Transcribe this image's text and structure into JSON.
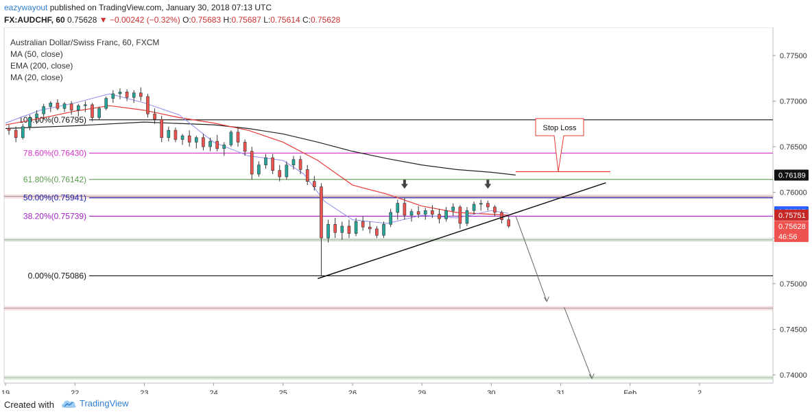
{
  "header": {
    "username": "eazywayout",
    "published_text": "published on TradingView.com, January 30, 2018 07:13 UTC",
    "symbol": "FX:AUDCHF, 60",
    "last": "0.75628",
    "change": "▼ −0.00242 (−0.32%)",
    "o_label": "O:",
    "o_value": "0.75683",
    "h_label": "H:",
    "h_value": "0.75687",
    "l_label": "L:",
    "l_value": "0.75614",
    "c_label": "C:",
    "c_value": "0.75628"
  },
  "legend": {
    "title": "Australian Dollar/Swiss Franc, 60, FXCM",
    "items": [
      "MA (50, close)",
      "EMA (200, close)",
      "MA (20, close)"
    ]
  },
  "footer": {
    "created_with": "Created with",
    "brand": "TradingView"
  },
  "chart_data": {
    "type": "candlestick",
    "ylim": [
      0.7397,
      0.7777
    ],
    "y_ticks": [
      0.775,
      0.77,
      0.765,
      0.76,
      0.755,
      0.75,
      0.745,
      0.74
    ],
    "y_tick_labels": [
      "0.77500",
      "0.77000",
      "0.76500",
      "0.76000",
      "0.75500",
      "0.75000",
      "0.74500",
      "0.74000"
    ],
    "x_ticks": [
      {
        "label": "19",
        "t": 0
      },
      {
        "label": "22",
        "t": 1
      },
      {
        "label": "23",
        "t": 2
      },
      {
        "label": "24",
        "t": 3
      },
      {
        "label": "25",
        "t": 4
      },
      {
        "label": "26",
        "t": 5
      },
      {
        "label": "29",
        "t": 6
      },
      {
        "label": "30",
        "t": 7
      },
      {
        "label": "31",
        "t": 8
      },
      {
        "label": "Feb",
        "t": 9
      },
      {
        "label": "2",
        "t": 10
      }
    ],
    "colors": {
      "up": "#26a69a",
      "down": "#ef5350",
      "ma50": "#e53935",
      "ema200": "#222222",
      "ma20": "#8c8cf0",
      "fib_pink": "#d633c9",
      "fib_green": "#5a9a4e"
    },
    "fib_levels": [
      {
        "label": "100.00%(0.76795)",
        "value": 0.76795,
        "color": "#111111"
      },
      {
        "label": "78.60%(0.76430)",
        "value": 0.7643,
        "color": "#d633c9"
      },
      {
        "label": "61.80%(0.76142)",
        "value": 0.76142,
        "color": "#5a9a4e"
      },
      {
        "label": "50.00%(0.75941)",
        "value": 0.75941,
        "color": "#1a1aa8"
      },
      {
        "label": "38.20%(0.75739)",
        "value": 0.75739,
        "color": "#a020c0"
      },
      {
        "label": "0.00%(0.75086)",
        "value": 0.75086,
        "color": "#111111"
      }
    ],
    "price_labels": [
      {
        "text": "0.76189",
        "value": 0.76189,
        "bg": "#111111",
        "fg": "#ffffff"
      },
      {
        "text": "0.75787",
        "value": 0.75787,
        "bg": "#2962ff",
        "fg": "#ffffff"
      },
      {
        "text": "0.75751",
        "value": 0.75751,
        "bg": "#c62828",
        "fg": "#ffffff"
      },
      {
        "text": "0.75628",
        "value": 0.75628,
        "bg": "#ef5350",
        "fg": "#ffffff"
      },
      {
        "text": "46:56",
        "value": 0.75516,
        "bg": "#ef5350",
        "fg": "#ffffff"
      }
    ],
    "annotation": {
      "text": "Stop Loss",
      "stop_value": 0.76227
    },
    "trendline": {
      "from": {
        "t": 4.5,
        "v": 0.75055
      },
      "to": {
        "t": 8.65,
        "v": 0.76105
      }
    },
    "projection": [
      {
        "t": 7.35,
        "v": 0.75745
      },
      {
        "t": 7.8,
        "v": 0.74805
      },
      {
        "t": 8.05,
        "v": 0.7474
      },
      {
        "t": 8.45,
        "v": 0.7396
      }
    ],
    "horizontal_zones": [
      {
        "value": 0.75955,
        "color": "#e8b4b8"
      },
      {
        "value": 0.7548,
        "color": "#b9d9b9"
      },
      {
        "value": 0.7473,
        "color": "#e8b4b8"
      },
      {
        "value": 0.7397,
        "color": "#b9d9b9"
      }
    ],
    "ma50": [
      [
        0.0,
        0.7674
      ],
      [
        0.5,
        0.7681
      ],
      [
        1.0,
        0.7689
      ],
      [
        1.5,
        0.7695
      ],
      [
        2.0,
        0.769
      ],
      [
        2.5,
        0.7682
      ],
      [
        3.0,
        0.7676
      ],
      [
        3.5,
        0.7668
      ],
      [
        4.0,
        0.7655
      ],
      [
        4.5,
        0.7635
      ],
      [
        5.0,
        0.7608
      ],
      [
        5.5,
        0.7598
      ],
      [
        6.0,
        0.7585
      ],
      [
        6.5,
        0.7578
      ],
      [
        7.0,
        0.7576
      ],
      [
        7.25,
        0.7575
      ]
    ],
    "ema200": [
      [
        0.0,
        0.767
      ],
      [
        1.0,
        0.7673
      ],
      [
        2.0,
        0.7677
      ],
      [
        3.0,
        0.7674
      ],
      [
        3.5,
        0.767
      ],
      [
        4.0,
        0.7664
      ],
      [
        4.5,
        0.7655
      ],
      [
        5.0,
        0.7645
      ],
      [
        5.5,
        0.7637
      ],
      [
        6.0,
        0.763
      ],
      [
        6.5,
        0.7625
      ],
      [
        7.0,
        0.7622
      ],
      [
        7.35,
        0.7619
      ]
    ],
    "ma20": [
      [
        0.0,
        0.7676
      ],
      [
        0.5,
        0.769
      ],
      [
        1.0,
        0.7698
      ],
      [
        1.5,
        0.7708
      ],
      [
        2.0,
        0.7698
      ],
      [
        2.5,
        0.7685
      ],
      [
        3.0,
        0.7655
      ],
      [
        3.5,
        0.764
      ],
      [
        4.0,
        0.7635
      ],
      [
        4.3,
        0.762
      ],
      [
        4.6,
        0.759
      ],
      [
        5.0,
        0.757
      ],
      [
        5.5,
        0.7566
      ],
      [
        6.0,
        0.7575
      ],
      [
        6.5,
        0.7572
      ],
      [
        7.0,
        0.758
      ],
      [
        7.25,
        0.7577
      ]
    ],
    "candles": [
      [
        0.05,
        0.767,
        0.7674,
        0.7663,
        0.7668
      ],
      [
        0.15,
        0.7668,
        0.7672,
        0.7655,
        0.766
      ],
      [
        0.25,
        0.766,
        0.7675,
        0.7658,
        0.7672
      ],
      [
        0.35,
        0.7672,
        0.7685,
        0.7668,
        0.7682
      ],
      [
        0.45,
        0.7682,
        0.769,
        0.7675,
        0.7686
      ],
      [
        0.55,
        0.7686,
        0.7697,
        0.768,
        0.7694
      ],
      [
        0.65,
        0.7694,
        0.77,
        0.7688,
        0.7698
      ],
      [
        0.75,
        0.7698,
        0.7702,
        0.769,
        0.7692
      ],
      [
        0.85,
        0.7692,
        0.7699,
        0.7688,
        0.7697
      ],
      [
        0.95,
        0.7697,
        0.77,
        0.7685,
        0.769
      ],
      [
        1.05,
        0.769,
        0.7697,
        0.7683,
        0.7695
      ],
      [
        1.15,
        0.7695,
        0.77,
        0.7688,
        0.7696
      ],
      [
        1.25,
        0.7696,
        0.7698,
        0.7678,
        0.7682
      ],
      [
        1.35,
        0.7682,
        0.7694,
        0.768,
        0.7692
      ],
      [
        1.45,
        0.7692,
        0.7705,
        0.769,
        0.7703
      ],
      [
        1.55,
        0.7703,
        0.7712,
        0.7698,
        0.7708
      ],
      [
        1.65,
        0.7708,
        0.7714,
        0.7702,
        0.771
      ],
      [
        1.75,
        0.771,
        0.7713,
        0.77,
        0.7704
      ],
      [
        1.85,
        0.7704,
        0.7712,
        0.7698,
        0.7709
      ],
      [
        1.95,
        0.7709,
        0.7715,
        0.77,
        0.7705
      ],
      [
        2.05,
        0.7705,
        0.7708,
        0.7682,
        0.7686
      ],
      [
        2.15,
        0.7686,
        0.7692,
        0.7675,
        0.768
      ],
      [
        2.25,
        0.768,
        0.7684,
        0.7655,
        0.766
      ],
      [
        2.35,
        0.766,
        0.7672,
        0.7656,
        0.7668
      ],
      [
        2.45,
        0.7668,
        0.7671,
        0.7655,
        0.7658
      ],
      [
        2.55,
        0.7658,
        0.7664,
        0.7652,
        0.7662
      ],
      [
        2.65,
        0.7662,
        0.7668,
        0.765,
        0.7655
      ],
      [
        2.75,
        0.7655,
        0.7662,
        0.7648,
        0.766
      ],
      [
        2.85,
        0.766,
        0.7664,
        0.7646,
        0.765
      ],
      [
        2.95,
        0.765,
        0.766,
        0.7645,
        0.7656
      ],
      [
        3.05,
        0.7656,
        0.7663,
        0.7645,
        0.7648
      ],
      [
        3.15,
        0.7648,
        0.7655,
        0.764,
        0.7652
      ],
      [
        3.25,
        0.7652,
        0.7668,
        0.765,
        0.7666
      ],
      [
        3.35,
        0.7666,
        0.7672,
        0.765,
        0.7655
      ],
      [
        3.45,
        0.7655,
        0.7658,
        0.764,
        0.7645
      ],
      [
        3.55,
        0.7645,
        0.765,
        0.7614,
        0.762
      ],
      [
        3.65,
        0.762,
        0.7634,
        0.7617,
        0.763
      ],
      [
        3.75,
        0.763,
        0.7642,
        0.7626,
        0.7638
      ],
      [
        3.85,
        0.7638,
        0.7642,
        0.762,
        0.7624
      ],
      [
        3.95,
        0.7624,
        0.763,
        0.7612,
        0.7617
      ],
      [
        4.05,
        0.7617,
        0.7634,
        0.7614,
        0.763
      ],
      [
        4.15,
        0.763,
        0.764,
        0.7625,
        0.7636
      ],
      [
        4.25,
        0.7636,
        0.764,
        0.762,
        0.7625
      ],
      [
        4.35,
        0.7625,
        0.763,
        0.7608,
        0.7612
      ],
      [
        4.45,
        0.7612,
        0.7618,
        0.7602,
        0.7606
      ],
      [
        4.55,
        0.7606,
        0.761,
        0.7508,
        0.755
      ],
      [
        4.65,
        0.755,
        0.757,
        0.7545,
        0.7565
      ],
      [
        4.75,
        0.7565,
        0.7572,
        0.755,
        0.7556
      ],
      [
        4.85,
        0.7556,
        0.7568,
        0.7548,
        0.7563
      ],
      [
        4.95,
        0.7563,
        0.757,
        0.755,
        0.7555
      ],
      [
        5.05,
        0.7555,
        0.7572,
        0.7552,
        0.7568
      ],
      [
        5.15,
        0.7568,
        0.7574,
        0.7558,
        0.7562
      ],
      [
        5.25,
        0.7562,
        0.7568,
        0.7555,
        0.756
      ],
      [
        5.35,
        0.756,
        0.7563,
        0.755,
        0.7553
      ],
      [
        5.45,
        0.7553,
        0.7568,
        0.755,
        0.7565
      ],
      [
        5.55,
        0.7565,
        0.7582,
        0.7562,
        0.7578
      ],
      [
        5.65,
        0.7578,
        0.7592,
        0.757,
        0.7588
      ],
      [
        5.75,
        0.7588,
        0.7594,
        0.757,
        0.7575
      ],
      [
        5.85,
        0.7575,
        0.7582,
        0.7568,
        0.7579
      ],
      [
        5.95,
        0.7579,
        0.7585,
        0.7572,
        0.7576
      ],
      [
        6.05,
        0.7576,
        0.7583,
        0.757,
        0.758
      ],
      [
        6.15,
        0.758,
        0.7586,
        0.7572,
        0.7576
      ],
      [
        6.25,
        0.7576,
        0.7582,
        0.7566,
        0.7571
      ],
      [
        6.35,
        0.7571,
        0.7584,
        0.7568,
        0.758
      ],
      [
        6.45,
        0.758,
        0.7588,
        0.7574,
        0.7584
      ],
      [
        6.55,
        0.7584,
        0.7586,
        0.756,
        0.7566
      ],
      [
        6.65,
        0.7566,
        0.7584,
        0.7563,
        0.758
      ],
      [
        6.75,
        0.758,
        0.759,
        0.7576,
        0.7587
      ],
      [
        6.85,
        0.7587,
        0.7592,
        0.758,
        0.7588
      ],
      [
        6.95,
        0.7588,
        0.7591,
        0.758,
        0.7584
      ],
      [
        7.05,
        0.7584,
        0.7586,
        0.7574,
        0.7578
      ],
      [
        7.15,
        0.7578,
        0.758,
        0.7566,
        0.757
      ],
      [
        7.25,
        0.757,
        0.7574,
        0.7561,
        0.7563
      ]
    ]
  }
}
